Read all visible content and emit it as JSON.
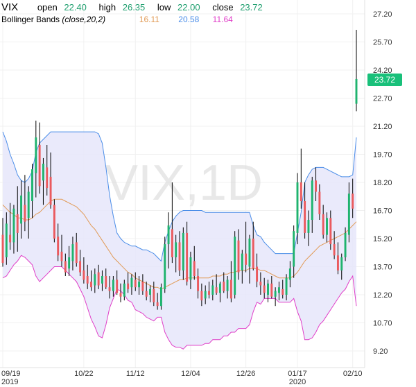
{
  "header": {
    "symbol": "VIX",
    "open_label": "open",
    "open_value": "22.40",
    "high_label": "high",
    "high_value": "26.35",
    "low_label": "low",
    "low_value": "22.00",
    "close_label": "close",
    "close_value": "23.72",
    "indicator_name": "Bollinger Bands",
    "indicator_params": "(close,20,2)",
    "bb_mid_value": "16.11",
    "bb_upper_value": "20.58",
    "bb_lower_value": "11.64"
  },
  "watermark": "VIX,1D",
  "last_price": "23.72",
  "colors": {
    "up": "#1fb36e",
    "down": "#ea5a5e",
    "upper_band": "#4a8de8",
    "middle_band": "#e19a55",
    "lower_band": "#e03ec8",
    "band_fill": "#e6e6fa"
  },
  "chart_data": {
    "type": "candlestick",
    "y_axis": {
      "min": 9.2,
      "max": 27.2,
      "ticks": [
        "27.20",
        "25.70",
        "24.20",
        "22.70",
        "21.20",
        "19.70",
        "18.20",
        "16.70",
        "15.20",
        "13.70",
        "12.20",
        "10.70",
        "9.20"
      ]
    },
    "x_axis_labels": [
      {
        "top": "09/19",
        "bottom": "2019",
        "idx": 0
      },
      {
        "top": "10/22",
        "bottom": "",
        "idx": 22
      },
      {
        "top": "11/12",
        "bottom": "",
        "idx": 36
      },
      {
        "top": "12/04",
        "bottom": "",
        "idx": 51
      },
      {
        "top": "12/26",
        "bottom": "",
        "idx": 66
      },
      {
        "top": "01/17",
        "bottom": "2020",
        "idx": 80
      },
      {
        "top": "02/10",
        "bottom": "",
        "idx": 95
      }
    ],
    "ohlc": [
      [
        15.4,
        16.3,
        13.7,
        13.9
      ],
      [
        14.2,
        16.6,
        13.8,
        16.0
      ],
      [
        15.4,
        17.1,
        14.6,
        15.0
      ],
      [
        15.0,
        17.0,
        14.4,
        16.8
      ],
      [
        16.5,
        18.0,
        14.5,
        15.5
      ],
      [
        16.0,
        18.3,
        15.2,
        17.5
      ],
      [
        17.0,
        18.6,
        15.6,
        16.1
      ],
      [
        16.3,
        18.0,
        15.2,
        17.7
      ],
      [
        17.2,
        19.2,
        16.3,
        18.9
      ],
      [
        18.7,
        21.5,
        17.4,
        20.6
      ],
      [
        20.2,
        21.4,
        17.6,
        18.0
      ],
      [
        18.3,
        19.5,
        17.0,
        19.2
      ],
      [
        19.0,
        20.2,
        17.5,
        17.9
      ],
      [
        18.5,
        19.8,
        16.8,
        17.0
      ],
      [
        17.0,
        17.3,
        15.0,
        15.2
      ],
      [
        15.3,
        16.0,
        14.0,
        14.3
      ],
      [
        14.5,
        15.4,
        13.7,
        14.0
      ],
      [
        14.0,
        14.4,
        13.2,
        13.4
      ],
      [
        13.6,
        14.8,
        13.2,
        14.2
      ],
      [
        14.0,
        15.3,
        13.5,
        14.9
      ],
      [
        15.0,
        15.5,
        13.7,
        13.9
      ],
      [
        14.0,
        14.6,
        13.2,
        13.4
      ],
      [
        13.5,
        14.2,
        12.8,
        13.0
      ],
      [
        13.2,
        13.8,
        12.5,
        12.8
      ],
      [
        12.9,
        13.5,
        12.4,
        12.6
      ],
      [
        12.7,
        13.6,
        12.3,
        13.3
      ],
      [
        13.4,
        13.8,
        12.5,
        12.7
      ],
      [
        12.8,
        13.5,
        12.4,
        13.2
      ],
      [
        13.2,
        13.6,
        12.5,
        12.6
      ],
      [
        12.6,
        13.2,
        12.0,
        12.4
      ],
      [
        12.4,
        13.2,
        12.1,
        13.0
      ],
      [
        13.0,
        13.5,
        12.2,
        12.3
      ],
      [
        12.3,
        12.8,
        11.8,
        12.1
      ],
      [
        12.1,
        13.0,
        11.9,
        12.8
      ],
      [
        12.8,
        13.4,
        12.3,
        12.5
      ],
      [
        12.6,
        13.3,
        12.2,
        13.1
      ],
      [
        13.0,
        13.4,
        12.4,
        12.6
      ],
      [
        12.6,
        13.2,
        12.2,
        12.9
      ],
      [
        12.9,
        13.3,
        12.2,
        12.4
      ],
      [
        12.4,
        12.9,
        11.9,
        12.1
      ],
      [
        12.2,
        12.7,
        11.8,
        12.5
      ],
      [
        12.5,
        12.9,
        11.6,
        11.8
      ],
      [
        11.8,
        12.3,
        11.4,
        11.6
      ],
      [
        11.6,
        12.8,
        11.4,
        12.6
      ],
      [
        12.5,
        15.3,
        12.3,
        14.9
      ],
      [
        14.9,
        16.6,
        13.6,
        15.9
      ],
      [
        15.7,
        18.2,
        13.9,
        14.2
      ],
      [
        14.2,
        15.4,
        13.4,
        15.0
      ],
      [
        15.0,
        15.6,
        13.2,
        13.5
      ],
      [
        13.5,
        15.8,
        13.0,
        15.5
      ],
      [
        15.5,
        16.1,
        12.7,
        12.9
      ],
      [
        13.0,
        14.5,
        12.5,
        14.2
      ],
      [
        14.0,
        14.8,
        13.0,
        13.2
      ],
      [
        13.2,
        13.6,
        12.0,
        12.4
      ],
      [
        12.4,
        12.8,
        11.6,
        11.9
      ],
      [
        12.0,
        12.7,
        11.7,
        12.4
      ],
      [
        12.4,
        12.9,
        12.0,
        12.2
      ],
      [
        12.2,
        13.0,
        11.9,
        12.7
      ],
      [
        12.6,
        13.3,
        12.2,
        12.3
      ],
      [
        12.3,
        12.9,
        11.8,
        12.8
      ],
      [
        12.9,
        13.4,
        12.3,
        12.4
      ],
      [
        12.4,
        13.2,
        12.0,
        13.0
      ],
      [
        13.0,
        14.0,
        11.8,
        12.0
      ],
      [
        12.2,
        15.6,
        12.0,
        15.3
      ],
      [
        15.1,
        15.7,
        13.0,
        13.4
      ],
      [
        13.5,
        14.6,
        12.8,
        14.4
      ],
      [
        14.4,
        16.1,
        13.4,
        13.8
      ],
      [
        13.7,
        15.4,
        12.8,
        15.2
      ],
      [
        15.2,
        16.1,
        13.5,
        13.6
      ],
      [
        13.7,
        14.4,
        12.6,
        12.9
      ],
      [
        12.9,
        13.4,
        12.2,
        12.7
      ],
      [
        12.7,
        13.1,
        12.0,
        12.3
      ],
      [
        12.2,
        13.0,
        11.8,
        12.8
      ],
      [
        12.8,
        13.2,
        12.0,
        12.1
      ],
      [
        12.1,
        12.6,
        11.6,
        12.4
      ],
      [
        12.3,
        12.9,
        11.9,
        12.6
      ],
      [
        12.5,
        13.0,
        12.0,
        12.2
      ],
      [
        12.2,
        13.3,
        11.9,
        13.1
      ],
      [
        13.0,
        14.0,
        12.6,
        13.6
      ],
      [
        13.7,
        15.9,
        13.1,
        15.6
      ],
      [
        15.5,
        18.7,
        14.9,
        18.2
      ],
      [
        18.2,
        20.0,
        16.8,
        17.2
      ],
      [
        17.2,
        18.2,
        15.2,
        15.5
      ],
      [
        15.5,
        16.7,
        14.8,
        16.2
      ],
      [
        16.2,
        18.5,
        15.5,
        18.3
      ],
      [
        18.3,
        19.0,
        17.2,
        17.7
      ],
      [
        17.7,
        18.1,
        16.2,
        16.5
      ],
      [
        16.5,
        17.0,
        15.2,
        15.4
      ],
      [
        15.4,
        16.6,
        15.0,
        16.3
      ],
      [
        16.3,
        16.7,
        14.6,
        14.9
      ],
      [
        14.9,
        15.6,
        14.1,
        14.3
      ],
      [
        14.3,
        15.0,
        13.3,
        13.5
      ],
      [
        13.5,
        14.4,
        13.0,
        14.2
      ],
      [
        14.2,
        15.8,
        14.0,
        15.5
      ],
      [
        15.4,
        18.2,
        15.0,
        17.6
      ],
      [
        17.6,
        18.4,
        16.3,
        16.8
      ],
      [
        22.4,
        26.35,
        22.0,
        23.72
      ]
    ],
    "bollinger": {
      "upper": [
        20.9,
        20.4,
        19.7,
        19.2,
        18.6,
        18.3,
        18.2,
        18.4,
        18.8,
        19.8,
        20.3,
        20.5,
        20.7,
        20.9,
        20.9,
        20.9,
        20.9,
        20.9,
        20.9,
        20.9,
        20.9,
        20.9,
        20.9,
        20.9,
        20.9,
        20.9,
        20.8,
        20.3,
        19.0,
        17.5,
        16.4,
        15.5,
        15.2,
        15.0,
        14.9,
        14.8,
        14.8,
        14.7,
        14.6,
        14.6,
        14.5,
        14.4,
        14.2,
        14.0,
        15.0,
        15.6,
        16.1,
        16.4,
        16.6,
        16.7,
        16.7,
        16.7,
        16.7,
        16.7,
        16.7,
        16.6,
        16.6,
        16.6,
        16.6,
        16.6,
        16.6,
        16.6,
        16.6,
        16.6,
        16.6,
        16.6,
        16.6,
        16.6,
        15.9,
        15.4,
        15.3,
        15.0,
        14.8,
        14.6,
        14.4,
        14.4,
        14.4,
        14.4,
        14.4,
        14.4,
        15.5,
        16.6,
        18.2,
        18.6,
        18.9,
        19.0,
        19.0,
        19.0,
        18.9,
        18.8,
        18.7,
        18.6,
        18.5,
        18.5,
        18.5,
        18.6,
        20.6
      ],
      "middle": [
        17.0,
        16.8,
        16.6,
        16.5,
        16.3,
        16.3,
        16.2,
        16.2,
        16.3,
        16.5,
        16.6,
        16.8,
        17.0,
        17.2,
        17.3,
        17.3,
        17.3,
        17.2,
        17.1,
        17.0,
        16.9,
        16.7,
        16.5,
        16.2,
        15.9,
        15.7,
        15.4,
        15.1,
        14.8,
        14.5,
        14.2,
        14.0,
        13.8,
        13.6,
        13.4,
        13.3,
        13.1,
        13.0,
        12.9,
        12.8,
        12.7,
        12.6,
        12.6,
        12.5,
        12.6,
        12.7,
        12.8,
        12.9,
        13.0,
        13.0,
        13.1,
        13.1,
        13.1,
        13.1,
        13.1,
        13.1,
        13.1,
        13.2,
        13.2,
        13.2,
        13.3,
        13.3,
        13.4,
        13.4,
        13.5,
        13.5,
        13.5,
        13.6,
        13.6,
        13.6,
        13.5,
        13.5,
        13.4,
        13.3,
        13.2,
        13.1,
        13.1,
        13.1,
        13.1,
        13.2,
        13.4,
        13.7,
        14.0,
        14.2,
        14.4,
        14.6,
        14.8,
        14.9,
        15.0,
        15.1,
        15.2,
        15.3,
        15.4,
        15.5,
        15.7,
        15.9,
        16.1
      ]
    }
  }
}
